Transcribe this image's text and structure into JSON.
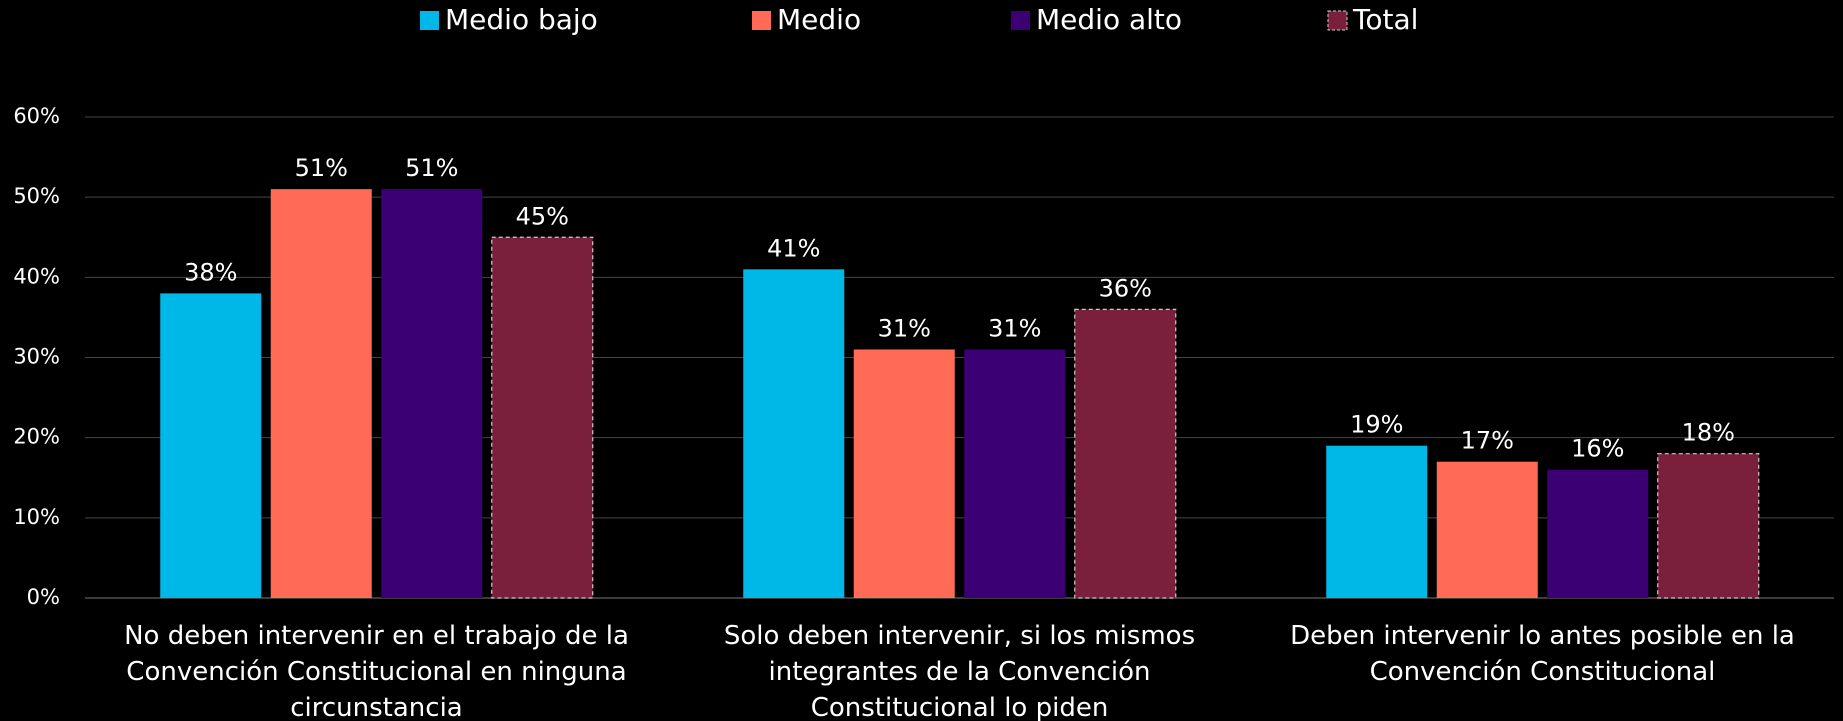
{
  "chart_data": {
    "type": "bar",
    "categories": [
      "No deben intervenir en el trabajo de la Convención Constitucional en  ninguna circunstancia",
      "Solo deben intervenir, si los mismos integrantes de la Convención Constitucional lo piden",
      "Deben intervenir lo antes posible en la Convención Constitucional"
    ],
    "series": [
      {
        "name": "Medio bajo",
        "color": "#00b8e8",
        "values": [
          38,
          41,
          19
        ],
        "value_labels": [
          "38%",
          "41%",
          "19%"
        ]
      },
      {
        "name": "Medio",
        "color": "#ff6b57",
        "values": [
          51,
          31,
          17
        ],
        "value_labels": [
          "51%",
          "31%",
          "17%"
        ]
      },
      {
        "name": "Medio alto",
        "color": "#3b0073",
        "values": [
          51,
          31,
          16
        ],
        "value_labels": [
          "51%",
          "31%",
          "16%"
        ]
      },
      {
        "name": "Total",
        "color": "#7a1f3c",
        "border": "dashed",
        "values": [
          45,
          36,
          18
        ],
        "value_labels": [
          "45%",
          "36%",
          "18%"
        ]
      }
    ],
    "ylim": [
      0,
      60
    ],
    "yticks": [
      {
        "value": 0,
        "label": "0%"
      },
      {
        "value": 10,
        "label": "10%"
      },
      {
        "value": 20,
        "label": "20%"
      },
      {
        "value": 30,
        "label": "30%"
      },
      {
        "value": 40,
        "label": "40%"
      },
      {
        "value": 50,
        "label": "50%"
      },
      {
        "value": 60,
        "label": "60%"
      }
    ],
    "grid": true,
    "legend": "top"
  }
}
